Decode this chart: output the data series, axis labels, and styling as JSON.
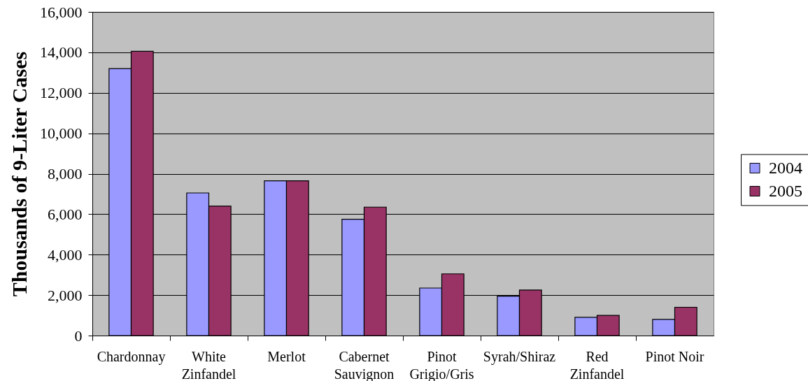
{
  "chart_data": {
    "type": "bar",
    "ylabel": "Thousands of 9-Liter Cases",
    "categories": [
      "Chardonnay",
      "White Zinfandel",
      "Merlot",
      "Cabernet Sauvignon",
      "Pinot Grigio/Gris",
      "Syrah/Shiraz",
      "Red Zinfandel",
      "Pinot Noir"
    ],
    "series": [
      {
        "name": "2004",
        "color": "#9999ff",
        "values": [
          13200,
          7050,
          7650,
          5750,
          2350,
          1950,
          900,
          800
        ]
      },
      {
        "name": "2005",
        "color": "#993366",
        "values": [
          14050,
          6400,
          7650,
          6350,
          3050,
          2250,
          1000,
          1400
        ]
      }
    ],
    "ylim": [
      0,
      16000
    ],
    "yticks": [
      0,
      {
        "value": 2000,
        "label": "2,000"
      },
      {
        "value": 4000,
        "label": "4,000"
      },
      {
        "value": 6000,
        "label": "6,000"
      },
      {
        "value": 8000,
        "label": "8,000"
      },
      {
        "value": 10000,
        "label": "10,000"
      },
      {
        "value": 12000,
        "label": "12,000"
      },
      {
        "value": 14000,
        "label": "14,000"
      },
      {
        "value": 16000,
        "label": "16,000"
      }
    ],
    "grid": "y",
    "legend": "right"
  }
}
